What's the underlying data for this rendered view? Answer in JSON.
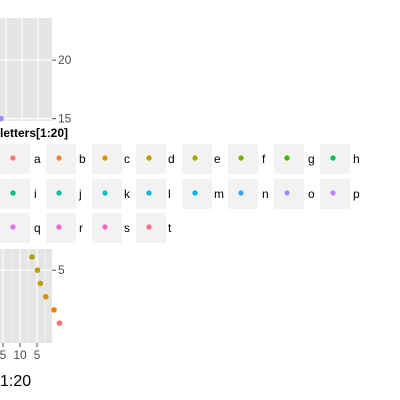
{
  "chart_data": {
    "type": "scatter",
    "top_panel": {
      "y_ticks": [
        15,
        20
      ],
      "y_tick_labels": [
        "15",
        "20"
      ],
      "ylim": [
        14.8,
        23.6
      ],
      "points": [
        {
          "x": 1,
          "y": 15,
          "color": "#9c8dff"
        }
      ]
    },
    "bottom_panel": {
      "y_ticks": [
        5
      ],
      "y_tick_labels": [
        "5"
      ],
      "ylim": [
        -0.5,
        6.6
      ],
      "x_tick_labels": [
        "5",
        "10",
        "5"
      ],
      "points": [
        {
          "x": 4,
          "y": 6,
          "color": "#a3a500"
        },
        {
          "x": 5,
          "y": 5,
          "color": "#b79f00"
        },
        {
          "x": 5.5,
          "y": 4,
          "color": "#c49a00"
        },
        {
          "x": 6.5,
          "y": 3,
          "color": "#d89000"
        },
        {
          "x": 8,
          "y": 2,
          "color": "#e58700"
        },
        {
          "x": 9,
          "y": 1,
          "color": "#f8766d"
        }
      ]
    },
    "legend": {
      "title": "letters[1:20]",
      "entries": [
        {
          "label": "a",
          "color": "#f8766d"
        },
        {
          "label": "b",
          "color": "#ea8331"
        },
        {
          "label": "c",
          "color": "#d89000"
        },
        {
          "label": "d",
          "color": "#c09b00"
        },
        {
          "label": "e",
          "color": "#a3a500"
        },
        {
          "label": "f",
          "color": "#7cae00"
        },
        {
          "label": "g",
          "color": "#39b600"
        },
        {
          "label": "h",
          "color": "#00bb4e"
        },
        {
          "label": "i",
          "color": "#00bf7d"
        },
        {
          "label": "j",
          "color": "#00c1a3"
        },
        {
          "label": "k",
          "color": "#00bfc4"
        },
        {
          "label": "l",
          "color": "#00bae0"
        },
        {
          "label": "m",
          "color": "#00b0f6"
        },
        {
          "label": "n",
          "color": "#35a2ff"
        },
        {
          "label": "o",
          "color": "#9590ff"
        },
        {
          "label": "p",
          "color": "#c77cff"
        },
        {
          "label": "q",
          "color": "#e76bf3"
        },
        {
          "label": "r",
          "color": "#fa62db"
        },
        {
          "label": "s",
          "color": "#ff62bc"
        },
        {
          "label": "t",
          "color": "#ff6c91"
        }
      ]
    },
    "x_axis_title": "1:20",
    "panel_background": "#e5e5e5",
    "grid_color": "#ffffff"
  }
}
